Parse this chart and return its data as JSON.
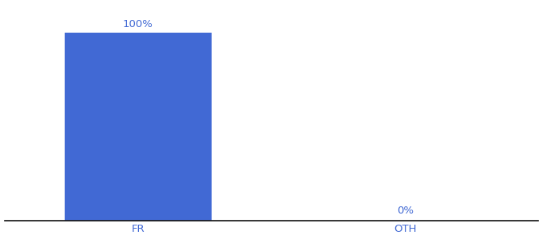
{
  "categories": [
    "FR",
    "OTH"
  ],
  "values": [
    100,
    0
  ],
  "bar_color": "#4169d4",
  "label_color": "#4169d4",
  "tick_label_color": "#4169d4",
  "background_color": "#ffffff",
  "bar_width": 0.55,
  "ylim": [
    0,
    115
  ],
  "xlim": [
    -0.5,
    1.5
  ],
  "label_fontsize": 9.5,
  "tick_fontsize": 9.5,
  "annotations": [
    "100%",
    "0%"
  ],
  "x_positions": [
    0,
    1
  ]
}
